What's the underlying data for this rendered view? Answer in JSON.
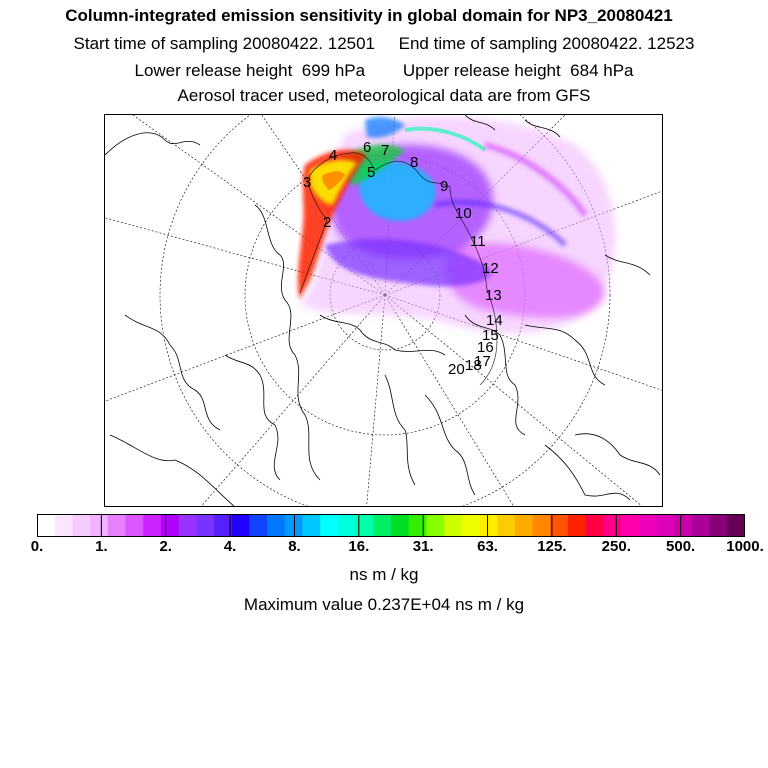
{
  "header": {
    "title": "Column-integrated emission sensitivity in global domain for NP3_20080421",
    "sampling": "Start time of sampling 20080422. 12501     End time of sampling 20080422. 12523",
    "release": "Lower release height  699 hPa        Upper release height  684 hPa",
    "tracer": "Aerosol tracer used, meteorological data are from GFS"
  },
  "map": {
    "trajectory_labels": [
      "2",
      "3",
      "4",
      "5",
      "6",
      "7",
      "8",
      "9",
      "10",
      "11",
      "12",
      "13",
      "14",
      "15",
      "16",
      "17",
      "18",
      "20"
    ]
  },
  "colorbar": {
    "tick_labels": [
      "0.",
      "1.",
      "2.",
      "4.",
      "8.",
      "16.",
      "31.",
      "63.",
      "125.",
      "250.",
      "500.",
      "1000."
    ],
    "colors": [
      "#ffffff",
      "#fbe6ff",
      "#f6ccff",
      "#f0b3ff",
      "#e680ff",
      "#dd55ff",
      "#cc22ff",
      "#b200ff",
      "#9933ff",
      "#7a33ff",
      "#5522ff",
      "#2200ff",
      "#1144ff",
      "#0077ff",
      "#0099ff",
      "#00c8ff",
      "#00ffff",
      "#00ffdd",
      "#00ffaa",
      "#00ee66",
      "#00dd22",
      "#33ee00",
      "#88ff00",
      "#ccff00",
      "#eeff00",
      "#ffee00",
      "#ffcc00",
      "#ffaa00",
      "#ff8800",
      "#ff5500",
      "#ff2200",
      "#ff0044",
      "#ff0088",
      "#ff00aa",
      "#ee00bb",
      "#dd00bb",
      "#cc00aa",
      "#aa0099",
      "#880077",
      "#660055"
    ],
    "units": "ns m / kg",
    "max_value": "Maximum value  0.237E+04 ns m / kg"
  }
}
